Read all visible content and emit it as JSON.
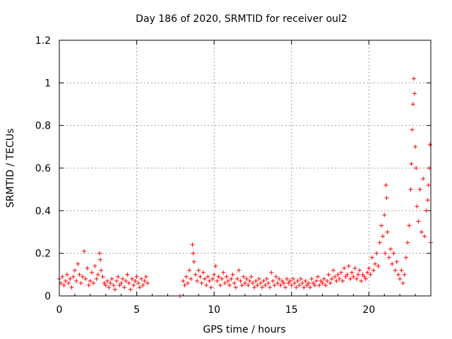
{
  "chart_data": {
    "type": "scatter",
    "title": "Day 186 of 2020, SRMTID for receiver oul2",
    "xlabel": "GPS time / hours",
    "ylabel": "SRMTID / TECUs",
    "xlim": [
      0,
      24
    ],
    "ylim": [
      0,
      1.2
    ],
    "xticks": [
      0,
      5,
      10,
      15,
      20
    ],
    "xtick_labels": [
      "0",
      "5",
      "10",
      "15",
      "20"
    ],
    "yticks": [
      0,
      0.2,
      0.4,
      0.6,
      0.8,
      1,
      1.2
    ],
    "ytick_labels": [
      "0",
      "0.2",
      "0.4",
      "0.6",
      "0.8",
      "1",
      "1.2"
    ],
    "grid": true,
    "marker": "plus",
    "series": [
      {
        "name": "SRMTID",
        "color": "#ff0000",
        "points": [
          [
            0.0,
            0.08
          ],
          [
            0.1,
            0.06
          ],
          [
            0.2,
            0.09
          ],
          [
            0.3,
            0.05
          ],
          [
            0.4,
            0.07
          ],
          [
            0.5,
            0.1
          ],
          [
            0.6,
            0.06
          ],
          [
            0.7,
            0.08
          ],
          [
            0.8,
            0.04
          ],
          [
            0.9,
            0.09
          ],
          [
            1.0,
            0.12
          ],
          [
            1.1,
            0.07
          ],
          [
            1.2,
            0.15
          ],
          [
            1.3,
            0.1
          ],
          [
            1.4,
            0.06
          ],
          [
            1.5,
            0.09
          ],
          [
            1.6,
            0.21
          ],
          [
            1.7,
            0.08
          ],
          [
            1.8,
            0.13
          ],
          [
            1.9,
            0.05
          ],
          [
            2.0,
            0.07
          ],
          [
            2.1,
            0.11
          ],
          [
            2.2,
            0.06
          ],
          [
            2.3,
            0.14
          ],
          [
            2.4,
            0.08
          ],
          [
            2.5,
            0.1
          ],
          [
            2.6,
            0.2
          ],
          [
            2.65,
            0.17
          ],
          [
            2.7,
            0.12
          ],
          [
            2.8,
            0.09
          ],
          [
            2.9,
            0.06
          ],
          [
            3.0,
            0.05
          ],
          [
            3.1,
            0.07
          ],
          [
            3.2,
            0.04
          ],
          [
            3.3,
            0.06
          ],
          [
            3.4,
            0.08
          ],
          [
            3.5,
            0.05
          ],
          [
            3.6,
            0.03
          ],
          [
            3.7,
            0.07
          ],
          [
            3.8,
            0.09
          ],
          [
            3.9,
            0.05
          ],
          [
            4.0,
            0.06
          ],
          [
            4.1,
            0.08
          ],
          [
            4.2,
            0.04
          ],
          [
            4.3,
            0.07
          ],
          [
            4.4,
            0.1
          ],
          [
            4.5,
            0.06
          ],
          [
            4.6,
            0.03
          ],
          [
            4.7,
            0.08
          ],
          [
            4.8,
            0.05
          ],
          [
            4.9,
            0.07
          ],
          [
            5.0,
            0.09
          ],
          [
            5.1,
            0.06
          ],
          [
            5.2,
            0.04
          ],
          [
            5.3,
            0.08
          ],
          [
            5.4,
            0.05
          ],
          [
            5.5,
            0.07
          ],
          [
            5.6,
            0.09
          ],
          [
            5.7,
            0.06
          ],
          [
            7.8,
            0.0
          ],
          [
            8.0,
            0.07
          ],
          [
            8.1,
            0.05
          ],
          [
            8.2,
            0.09
          ],
          [
            8.3,
            0.06
          ],
          [
            8.4,
            0.12
          ],
          [
            8.5,
            0.08
          ],
          [
            8.6,
            0.24
          ],
          [
            8.65,
            0.2
          ],
          [
            8.7,
            0.16
          ],
          [
            8.8,
            0.1
          ],
          [
            8.9,
            0.07
          ],
          [
            9.0,
            0.12
          ],
          [
            9.1,
            0.09
          ],
          [
            9.2,
            0.06
          ],
          [
            9.3,
            0.11
          ],
          [
            9.4,
            0.08
          ],
          [
            9.5,
            0.05
          ],
          [
            9.6,
            0.09
          ],
          [
            9.7,
            0.07
          ],
          [
            9.8,
            0.04
          ],
          [
            9.9,
            0.08
          ],
          [
            10.0,
            0.1
          ],
          [
            10.1,
            0.14
          ],
          [
            10.2,
            0.07
          ],
          [
            10.3,
            0.09
          ],
          [
            10.4,
            0.05
          ],
          [
            10.5,
            0.08
          ],
          [
            10.6,
            0.11
          ],
          [
            10.7,
            0.06
          ],
          [
            10.8,
            0.09
          ],
          [
            10.9,
            0.07
          ],
          [
            11.0,
            0.05
          ],
          [
            11.1,
            0.08
          ],
          [
            11.2,
            0.1
          ],
          [
            11.3,
            0.06
          ],
          [
            11.4,
            0.04
          ],
          [
            11.5,
            0.08
          ],
          [
            11.6,
            0.12
          ],
          [
            11.7,
            0.07
          ],
          [
            11.8,
            0.05
          ],
          [
            11.9,
            0.09
          ],
          [
            12.0,
            0.06
          ],
          [
            12.1,
            0.08
          ],
          [
            12.2,
            0.05
          ],
          [
            12.3,
            0.07
          ],
          [
            12.4,
            0.09
          ],
          [
            12.5,
            0.06
          ],
          [
            12.6,
            0.04
          ],
          [
            12.7,
            0.07
          ],
          [
            12.8,
            0.05
          ],
          [
            12.9,
            0.08
          ],
          [
            13.0,
            0.06
          ],
          [
            13.1,
            0.04
          ],
          [
            13.2,
            0.07
          ],
          [
            13.3,
            0.05
          ],
          [
            13.4,
            0.08
          ],
          [
            13.5,
            0.06
          ],
          [
            13.6,
            0.04
          ],
          [
            13.7,
            0.11
          ],
          [
            13.8,
            0.07
          ],
          [
            13.9,
            0.05
          ],
          [
            14.0,
            0.09
          ],
          [
            14.1,
            0.06
          ],
          [
            14.2,
            0.08
          ],
          [
            14.3,
            0.05
          ],
          [
            14.4,
            0.07
          ],
          [
            14.5,
            0.06
          ],
          [
            14.6,
            0.04
          ],
          [
            14.7,
            0.08
          ],
          [
            14.8,
            0.06
          ],
          [
            14.9,
            0.07
          ],
          [
            15.0,
            0.05
          ],
          [
            15.1,
            0.08
          ],
          [
            15.2,
            0.06
          ],
          [
            15.3,
            0.04
          ],
          [
            15.4,
            0.07
          ],
          [
            15.5,
            0.05
          ],
          [
            15.6,
            0.08
          ],
          [
            15.7,
            0.06
          ],
          [
            15.8,
            0.04
          ],
          [
            15.9,
            0.07
          ],
          [
            16.0,
            0.05
          ],
          [
            16.1,
            0.06
          ],
          [
            16.2,
            0.04
          ],
          [
            16.3,
            0.08
          ],
          [
            16.4,
            0.06
          ],
          [
            16.5,
            0.05
          ],
          [
            16.6,
            0.07
          ],
          [
            16.7,
            0.09
          ],
          [
            16.8,
            0.05
          ],
          [
            16.9,
            0.07
          ],
          [
            17.0,
            0.06
          ],
          [
            17.1,
            0.08
          ],
          [
            17.2,
            0.05
          ],
          [
            17.3,
            0.07
          ],
          [
            17.4,
            0.1
          ],
          [
            17.5,
            0.06
          ],
          [
            17.6,
            0.08
          ],
          [
            17.7,
            0.12
          ],
          [
            17.8,
            0.09
          ],
          [
            17.9,
            0.07
          ],
          [
            18.0,
            0.1
          ],
          [
            18.1,
            0.08
          ],
          [
            18.2,
            0.11
          ],
          [
            18.3,
            0.07
          ],
          [
            18.4,
            0.13
          ],
          [
            18.5,
            0.09
          ],
          [
            18.6,
            0.1
          ],
          [
            18.7,
            0.14
          ],
          [
            18.8,
            0.08
          ],
          [
            18.9,
            0.11
          ],
          [
            19.0,
            0.09
          ],
          [
            19.1,
            0.13
          ],
          [
            19.2,
            0.08
          ],
          [
            19.3,
            0.1
          ],
          [
            19.4,
            0.12
          ],
          [
            19.5,
            0.07
          ],
          [
            19.6,
            0.1
          ],
          [
            19.7,
            0.09
          ],
          [
            19.8,
            0.08
          ],
          [
            19.9,
            0.11
          ],
          [
            20.0,
            0.13
          ],
          [
            20.1,
            0.1
          ],
          [
            20.2,
            0.18
          ],
          [
            20.3,
            0.12
          ],
          [
            20.4,
            0.15
          ],
          [
            20.5,
            0.2
          ],
          [
            20.6,
            0.14
          ],
          [
            20.7,
            0.25
          ],
          [
            20.8,
            0.33
          ],
          [
            20.9,
            0.28
          ],
          [
            21.0,
            0.38
          ],
          [
            21.05,
            0.2
          ],
          [
            21.1,
            0.52
          ],
          [
            21.15,
            0.46
          ],
          [
            21.2,
            0.3
          ],
          [
            21.3,
            0.18
          ],
          [
            21.4,
            0.22
          ],
          [
            21.5,
            0.15
          ],
          [
            21.6,
            0.2
          ],
          [
            21.7,
            0.12
          ],
          [
            21.8,
            0.16
          ],
          [
            21.9,
            0.1
          ],
          [
            22.0,
            0.08
          ],
          [
            22.1,
            0.12
          ],
          [
            22.2,
            0.06
          ],
          [
            22.3,
            0.1
          ],
          [
            22.4,
            0.18
          ],
          [
            22.5,
            0.25
          ],
          [
            22.6,
            0.33
          ],
          [
            22.7,
            0.5
          ],
          [
            22.75,
            0.62
          ],
          [
            22.8,
            0.78
          ],
          [
            22.85,
            0.9
          ],
          [
            22.9,
            1.02
          ],
          [
            22.95,
            0.95
          ],
          [
            23.0,
            0.7
          ],
          [
            23.05,
            0.6
          ],
          [
            23.1,
            0.42
          ],
          [
            23.2,
            0.35
          ],
          [
            23.3,
            0.5
          ],
          [
            23.4,
            0.3
          ],
          [
            23.5,
            0.55
          ],
          [
            23.6,
            0.28
          ],
          [
            23.7,
            0.4
          ],
          [
            23.8,
            0.45
          ],
          [
            23.85,
            0.52
          ],
          [
            23.9,
            0.6
          ],
          [
            23.95,
            0.71
          ],
          [
            24.0,
            0.25
          ]
        ]
      }
    ]
  }
}
